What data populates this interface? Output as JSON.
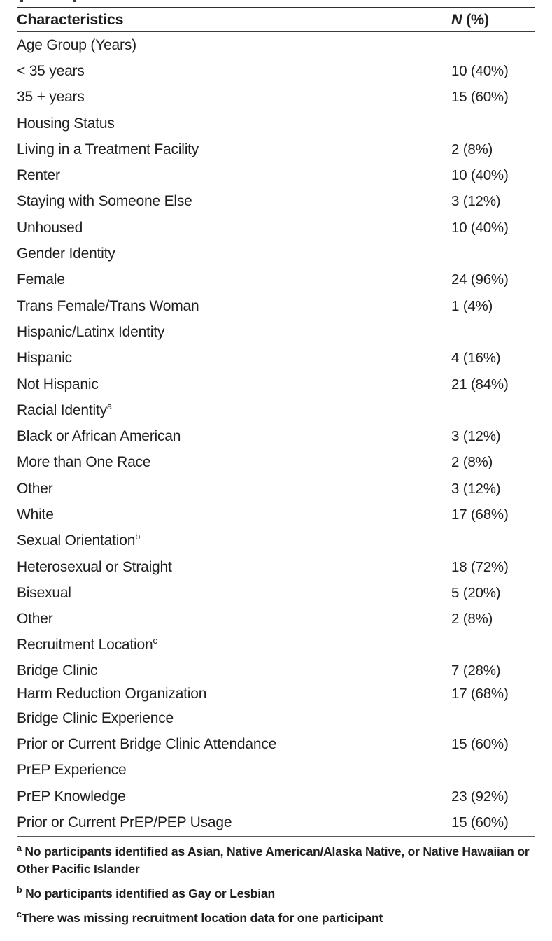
{
  "table": {
    "header": {
      "characteristics": "Characteristics",
      "n_italic": "N",
      "n_rest": " (%)"
    },
    "rows": [
      {
        "label": "Age Group (Years)"
      },
      {
        "label": "< 35 years",
        "value": "10 (40%)"
      },
      {
        "label": "35 + years",
        "value": "15 (60%)"
      },
      {
        "label": "Housing Status"
      },
      {
        "label": "Living in a Treatment Facility",
        "value": "2 (8%)"
      },
      {
        "label": "Renter",
        "value": "10 (40%)"
      },
      {
        "label": "Staying with Someone Else",
        "value": "3 (12%)"
      },
      {
        "label": "Unhoused",
        "value": "10 (40%)"
      },
      {
        "label": "Gender Identity"
      },
      {
        "label": "Female",
        "value": "24 (96%)"
      },
      {
        "label": "Trans Female/Trans Woman",
        "value": "1 (4%)"
      },
      {
        "label": "Hispanic/Latinx Identity"
      },
      {
        "label": "Hispanic",
        "value": "4 (16%)"
      },
      {
        "label": "Not Hispanic",
        "value": "21 (84%)"
      },
      {
        "label": "Racial Identity",
        "sup": "a"
      },
      {
        "label": "Black or African American",
        "value": "3 (12%)"
      },
      {
        "label": "More than One Race",
        "value": "2 (8%)"
      },
      {
        "label": "Other",
        "value": "3 (12%)"
      },
      {
        "label": "White",
        "value": "17 (68%)"
      },
      {
        "label": "Sexual Orientation",
        "sup": "b"
      },
      {
        "label": "Heterosexual or Straight",
        "value": "18 (72%)"
      },
      {
        "label": "Bisexual",
        "value": "5 (20%)"
      },
      {
        "label": "Other",
        "value": "2 (8%)"
      },
      {
        "label": "Recruitment Location",
        "sup": "c"
      },
      {
        "label": "Bridge Clinic",
        "value": "7 (28%)"
      },
      {
        "label": "Harm Reduction Organization",
        "value": "17 (68%)"
      },
      {
        "label": "Bridge Clinic Experience"
      },
      {
        "label": "Prior or Current Bridge Clinic Attendance",
        "value": "15 (60%)"
      },
      {
        "label": "PrEP Experience"
      },
      {
        "label": "PrEP Knowledge",
        "value": "23 (92%)"
      },
      {
        "label": "Prior or Current PrEP/PEP Usage",
        "value": "15 (60%)"
      }
    ]
  },
  "footnotes": [
    {
      "sup": "a",
      "text": " No participants identified as Asian, Native American/Alaska Native, or Native Hawaiian or Other Pacific Islander"
    },
    {
      "sup": "b",
      "text": " No participants identified as Gay or Lesbian"
    },
    {
      "sup": "c",
      "text": "There was missing recruitment location data for one participant"
    }
  ],
  "colors": {
    "text": "#1f1f1f",
    "rule_top": "#2e2e2e",
    "rule_header": "#3c3c3c",
    "rule_bottom": "#595959"
  }
}
